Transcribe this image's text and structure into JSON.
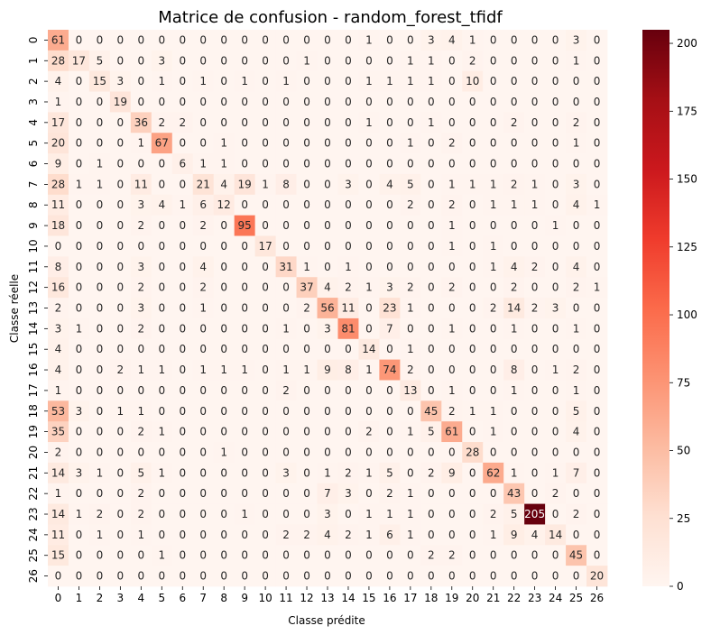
{
  "chart_data": {
    "type": "heatmap",
    "title": "Matrice de confusion - random_forest_tfidf",
    "xlabel": "Classe prédite",
    "ylabel": "Classe réelle",
    "x_categories": [
      "0",
      "1",
      "2",
      "3",
      "4",
      "5",
      "6",
      "7",
      "8",
      "9",
      "10",
      "11",
      "12",
      "13",
      "14",
      "15",
      "16",
      "17",
      "18",
      "19",
      "20",
      "21",
      "22",
      "23",
      "24",
      "25",
      "26"
    ],
    "y_categories": [
      "0",
      "1",
      "2",
      "3",
      "4",
      "5",
      "6",
      "7",
      "8",
      "9",
      "10",
      "11",
      "12",
      "13",
      "14",
      "15",
      "16",
      "17",
      "18",
      "19",
      "20",
      "21",
      "22",
      "23",
      "24",
      "25",
      "26"
    ],
    "values": [
      [
        61,
        0,
        0,
        0,
        0,
        0,
        0,
        0,
        0,
        0,
        0,
        0,
        0,
        0,
        0,
        1,
        0,
        0,
        3,
        4,
        1,
        0,
        0,
        0,
        0,
        3,
        0
      ],
      [
        28,
        17,
        5,
        0,
        0,
        3,
        0,
        0,
        0,
        0,
        0,
        0,
        1,
        0,
        0,
        0,
        0,
        1,
        1,
        0,
        2,
        0,
        0,
        0,
        0,
        1,
        0
      ],
      [
        4,
        0,
        15,
        3,
        0,
        1,
        0,
        1,
        0,
        1,
        0,
        1,
        0,
        0,
        0,
        1,
        1,
        1,
        1,
        0,
        10,
        0,
        0,
        0,
        0,
        0,
        0
      ],
      [
        1,
        0,
        0,
        19,
        0,
        0,
        0,
        0,
        0,
        0,
        0,
        0,
        0,
        0,
        0,
        0,
        0,
        0,
        0,
        0,
        0,
        0,
        0,
        0,
        0,
        0,
        0
      ],
      [
        17,
        0,
        0,
        0,
        36,
        2,
        2,
        0,
        0,
        0,
        0,
        0,
        0,
        0,
        0,
        1,
        0,
        0,
        1,
        0,
        0,
        0,
        2,
        0,
        0,
        2,
        0
      ],
      [
        20,
        0,
        0,
        0,
        1,
        67,
        0,
        0,
        1,
        0,
        0,
        0,
        0,
        0,
        0,
        0,
        0,
        1,
        0,
        2,
        0,
        0,
        0,
        0,
        0,
        1,
        0
      ],
      [
        9,
        0,
        1,
        0,
        0,
        0,
        6,
        1,
        1,
        0,
        0,
        0,
        0,
        0,
        0,
        0,
        0,
        0,
        0,
        0,
        0,
        0,
        0,
        0,
        0,
        0,
        0
      ],
      [
        28,
        1,
        1,
        0,
        11,
        0,
        0,
        21,
        4,
        19,
        1,
        8,
        0,
        0,
        3,
        0,
        4,
        5,
        0,
        1,
        1,
        1,
        2,
        1,
        0,
        3,
        0
      ],
      [
        11,
        0,
        0,
        0,
        3,
        4,
        1,
        6,
        12,
        0,
        0,
        0,
        0,
        0,
        0,
        0,
        0,
        2,
        0,
        2,
        0,
        1,
        1,
        1,
        0,
        4,
        1
      ],
      [
        18,
        0,
        0,
        0,
        2,
        0,
        0,
        2,
        0,
        95,
        0,
        0,
        0,
        0,
        0,
        0,
        0,
        0,
        0,
        1,
        0,
        0,
        0,
        0,
        1,
        0,
        0
      ],
      [
        0,
        0,
        0,
        0,
        0,
        0,
        0,
        0,
        0,
        0,
        17,
        0,
        0,
        0,
        0,
        0,
        0,
        0,
        0,
        1,
        0,
        1,
        0,
        0,
        0,
        0,
        0
      ],
      [
        8,
        0,
        0,
        0,
        3,
        0,
        0,
        4,
        0,
        0,
        0,
        31,
        1,
        0,
        1,
        0,
        0,
        0,
        0,
        0,
        0,
        1,
        4,
        2,
        0,
        4,
        0
      ],
      [
        16,
        0,
        0,
        0,
        2,
        0,
        0,
        2,
        0,
        0,
        0,
        0,
        37,
        4,
        2,
        1,
        3,
        2,
        0,
        2,
        0,
        0,
        2,
        0,
        0,
        2,
        1
      ],
      [
        2,
        0,
        0,
        0,
        3,
        0,
        0,
        1,
        0,
        0,
        0,
        0,
        2,
        56,
        11,
        0,
        23,
        1,
        0,
        0,
        0,
        2,
        14,
        2,
        3,
        0,
        0
      ],
      [
        3,
        1,
        0,
        0,
        2,
        0,
        0,
        0,
        0,
        0,
        0,
        1,
        0,
        3,
        81,
        0,
        7,
        0,
        0,
        1,
        0,
        0,
        1,
        0,
        0,
        1,
        0
      ],
      [
        4,
        0,
        0,
        0,
        0,
        0,
        0,
        0,
        0,
        0,
        0,
        0,
        0,
        0,
        0,
        14,
        0,
        1,
        0,
        0,
        0,
        0,
        0,
        0,
        0,
        0,
        0
      ],
      [
        4,
        0,
        0,
        2,
        1,
        1,
        0,
        1,
        1,
        1,
        0,
        1,
        1,
        9,
        8,
        1,
        74,
        2,
        0,
        0,
        0,
        0,
        8,
        0,
        1,
        2,
        0
      ],
      [
        1,
        0,
        0,
        0,
        0,
        0,
        0,
        0,
        0,
        0,
        0,
        2,
        0,
        0,
        0,
        0,
        0,
        13,
        0,
        1,
        0,
        0,
        1,
        0,
        0,
        1,
        0
      ],
      [
        53,
        3,
        0,
        1,
        1,
        0,
        0,
        0,
        0,
        0,
        0,
        0,
        0,
        0,
        0,
        0,
        0,
        0,
        45,
        2,
        1,
        1,
        0,
        0,
        0,
        5,
        0
      ],
      [
        35,
        0,
        0,
        0,
        2,
        1,
        0,
        0,
        0,
        0,
        0,
        0,
        0,
        0,
        0,
        2,
        0,
        1,
        5,
        61,
        0,
        1,
        0,
        0,
        0,
        4,
        0
      ],
      [
        2,
        0,
        0,
        0,
        0,
        0,
        0,
        0,
        1,
        0,
        0,
        0,
        0,
        0,
        0,
        0,
        0,
        0,
        0,
        0,
        28,
        0,
        0,
        0,
        0,
        0,
        0
      ],
      [
        14,
        3,
        1,
        0,
        5,
        1,
        0,
        0,
        0,
        0,
        0,
        3,
        0,
        1,
        2,
        1,
        5,
        0,
        2,
        9,
        0,
        62,
        1,
        0,
        1,
        7,
        0
      ],
      [
        1,
        0,
        0,
        0,
        2,
        0,
        0,
        0,
        0,
        0,
        0,
        0,
        0,
        7,
        3,
        0,
        2,
        1,
        0,
        0,
        0,
        0,
        43,
        0,
        2,
        0,
        0
      ],
      [
        14,
        1,
        2,
        0,
        2,
        0,
        0,
        0,
        0,
        1,
        0,
        0,
        0,
        3,
        0,
        1,
        1,
        1,
        0,
        0,
        0,
        2,
        5,
        205,
        0,
        2,
        0
      ],
      [
        11,
        0,
        1,
        0,
        1,
        0,
        0,
        0,
        0,
        0,
        0,
        2,
        2,
        4,
        2,
        1,
        6,
        1,
        0,
        0,
        0,
        1,
        9,
        4,
        14,
        0,
        0
      ],
      [
        15,
        0,
        0,
        0,
        0,
        1,
        0,
        0,
        0,
        0,
        0,
        0,
        0,
        0,
        0,
        0,
        0,
        0,
        2,
        2,
        0,
        0,
        0,
        0,
        0,
        45,
        0
      ],
      [
        0,
        0,
        0,
        0,
        0,
        0,
        0,
        0,
        0,
        0,
        0,
        0,
        0,
        0,
        0,
        0,
        0,
        0,
        0,
        0,
        0,
        0,
        0,
        0,
        0,
        0,
        20
      ]
    ],
    "colormap": "Reds",
    "colorbar": {
      "vmin": 0,
      "vmax": 205,
      "ticks": [
        0,
        25,
        50,
        75,
        100,
        125,
        150,
        175,
        200
      ]
    },
    "grid": false
  }
}
